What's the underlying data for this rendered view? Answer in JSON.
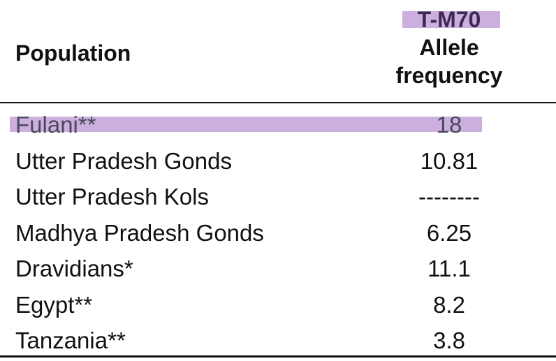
{
  "header": {
    "population_label": "Population",
    "marker_label": "T-M70",
    "freq_line1": "Allele",
    "freq_line2": "frequency"
  },
  "rows": [
    {
      "population": "Fulani**",
      "frequency": "18",
      "highlighted": true
    },
    {
      "population": "Utter Pradesh Gonds",
      "frequency": "10.81"
    },
    {
      "population": "Utter Pradesh Kols",
      "frequency": "--------"
    },
    {
      "population": "Madhya Pradesh Gonds",
      "frequency": "6.25"
    },
    {
      "population": "Dravidians*",
      "frequency": "11.1"
    },
    {
      "population": "Egypt**",
      "frequency": "8.2"
    },
    {
      "population": "Tanzania**",
      "frequency": "3.8"
    }
  ],
  "colors": {
    "highlight": "#c7a6dc",
    "rule": "#111111"
  }
}
